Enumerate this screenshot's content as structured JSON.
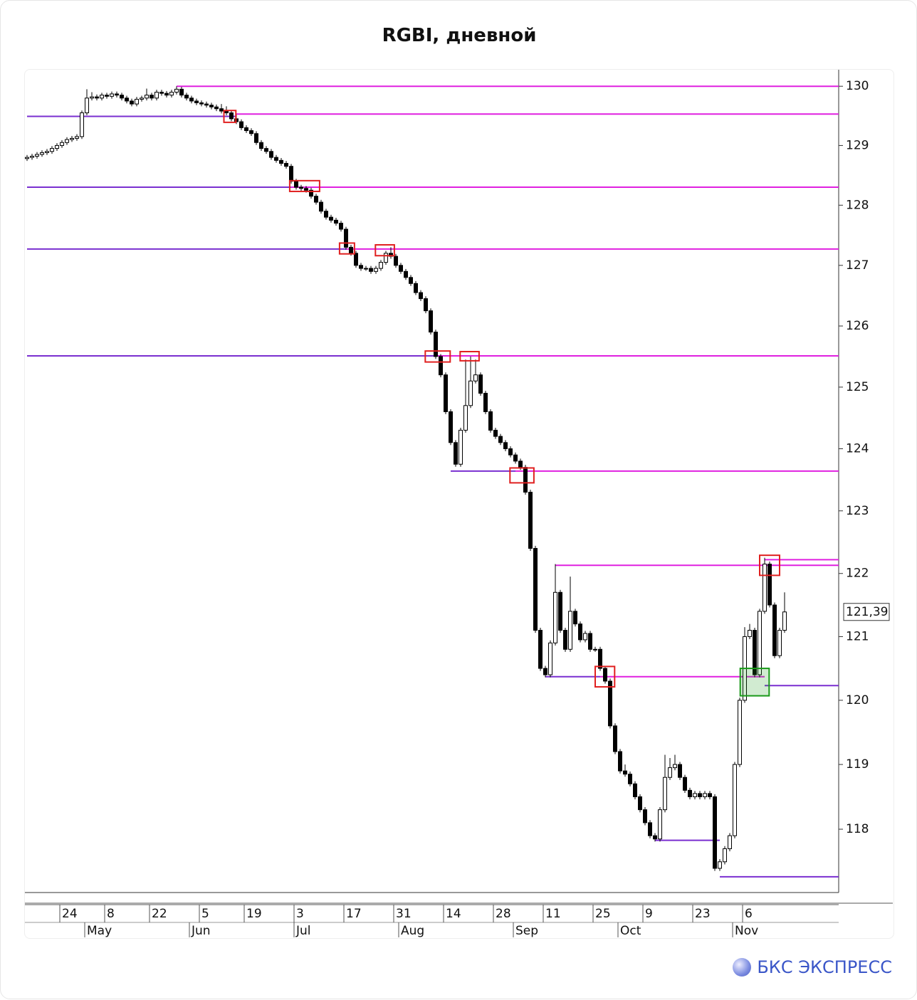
{
  "chart_data": {
    "type": "candlestick",
    "title": "RGBI, дневной",
    "log": true,
    "ylim": [
      117.03,
      130.28
    ],
    "yticks": [
      118,
      119,
      120,
      121,
      122,
      123,
      124,
      125,
      126,
      127,
      128,
      129,
      130
    ],
    "last_price": {
      "value": 121.39,
      "label": "121,39"
    },
    "xticks": [
      {
        "value": 7,
        "label": "24"
      },
      {
        "value": 16,
        "label": "8"
      },
      {
        "value": 25,
        "label": "22"
      },
      {
        "value": 35,
        "label": "5"
      },
      {
        "value": 44,
        "label": "19"
      },
      {
        "value": 54,
        "label": "3"
      },
      {
        "value": 64,
        "label": "17"
      },
      {
        "value": 74,
        "label": "31"
      },
      {
        "value": 84,
        "label": "14"
      },
      {
        "value": 94,
        "label": "28"
      },
      {
        "value": 104,
        "label": "11"
      },
      {
        "value": 114,
        "label": "25"
      },
      {
        "value": 124,
        "label": "9"
      },
      {
        "value": 134,
        "label": "23"
      },
      {
        "value": 144,
        "label": "6"
      }
    ],
    "month_ticks": [
      {
        "value": 12,
        "label": "May"
      },
      {
        "value": 33,
        "label": "Jun"
      },
      {
        "value": 54,
        "label": "Jul"
      },
      {
        "value": 75,
        "label": "Aug"
      },
      {
        "value": 98,
        "label": "Sep"
      },
      {
        "value": 119,
        "label": "Oct"
      },
      {
        "value": 142,
        "label": "Nov"
      }
    ],
    "ohlc": [
      [
        128.78,
        128.84,
        128.74,
        128.8
      ],
      [
        128.8,
        128.86,
        128.76,
        128.82
      ],
      [
        128.82,
        128.89,
        128.78,
        128.85
      ],
      [
        128.85,
        128.92,
        128.81,
        128.88
      ],
      [
        128.88,
        128.94,
        128.84,
        128.9
      ],
      [
        128.9,
        128.99,
        128.86,
        128.95
      ],
      [
        128.95,
        129.04,
        128.91,
        129.0
      ],
      [
        129.0,
        129.09,
        128.96,
        129.05
      ],
      [
        129.05,
        129.14,
        129.01,
        129.1
      ],
      [
        129.1,
        129.16,
        129.06,
        129.12
      ],
      [
        129.12,
        129.19,
        129.08,
        129.15
      ],
      [
        129.15,
        129.59,
        129.11,
        129.55
      ],
      [
        129.55,
        129.95,
        129.51,
        129.8
      ],
      [
        129.8,
        129.9,
        129.76,
        129.82
      ],
      [
        129.82,
        129.86,
        129.76,
        129.8
      ],
      [
        129.8,
        129.89,
        129.76,
        129.85
      ],
      [
        129.85,
        129.89,
        129.79,
        129.83
      ],
      [
        129.83,
        129.91,
        129.79,
        129.87
      ],
      [
        129.87,
        129.91,
        129.81,
        129.85
      ],
      [
        129.85,
        129.89,
        129.76,
        129.8
      ],
      [
        129.8,
        129.84,
        129.71,
        129.75
      ],
      [
        129.75,
        129.79,
        129.66,
        129.7
      ],
      [
        129.7,
        129.82,
        129.66,
        129.78
      ],
      [
        129.78,
        129.84,
        129.74,
        129.8
      ],
      [
        129.8,
        129.96,
        129.76,
        129.85
      ],
      [
        129.85,
        129.89,
        129.76,
        129.8
      ],
      [
        129.8,
        129.94,
        129.76,
        129.9
      ],
      [
        129.9,
        129.94,
        129.84,
        129.88
      ],
      [
        129.88,
        129.92,
        129.81,
        129.85
      ],
      [
        129.85,
        129.94,
        129.81,
        129.9
      ],
      [
        129.9,
        130.0,
        129.86,
        129.95
      ],
      [
        129.95,
        129.99,
        129.81,
        129.85
      ],
      [
        129.85,
        129.89,
        129.76,
        129.8
      ],
      [
        129.8,
        129.84,
        129.71,
        129.75
      ],
      [
        129.75,
        129.79,
        129.68,
        129.72
      ],
      [
        129.72,
        129.76,
        129.66,
        129.7
      ],
      [
        129.7,
        129.74,
        129.64,
        129.68
      ],
      [
        129.68,
        129.72,
        129.61,
        129.65
      ],
      [
        129.65,
        129.69,
        129.58,
        129.62
      ],
      [
        129.62,
        129.7,
        129.54,
        129.58
      ],
      [
        129.58,
        129.66,
        129.51,
        129.55
      ],
      [
        129.55,
        129.59,
        129.41,
        129.45
      ],
      [
        129.45,
        129.52,
        129.36,
        129.4
      ],
      [
        129.4,
        129.44,
        129.26,
        129.3
      ],
      [
        129.3,
        129.34,
        129.21,
        129.25
      ],
      [
        129.25,
        129.29,
        129.16,
        129.2
      ],
      [
        129.2,
        129.24,
        129.01,
        129.05
      ],
      [
        129.05,
        129.09,
        128.91,
        128.95
      ],
      [
        128.95,
        128.99,
        128.86,
        128.9
      ],
      [
        128.9,
        128.94,
        128.76,
        128.8
      ],
      [
        128.8,
        128.84,
        128.71,
        128.75
      ],
      [
        128.75,
        128.79,
        128.66,
        128.7
      ],
      [
        128.7,
        128.74,
        128.61,
        128.65
      ],
      [
        128.65,
        128.69,
        128.36,
        128.4
      ],
      [
        128.4,
        128.44,
        128.26,
        128.3
      ],
      [
        128.3,
        128.34,
        128.24,
        128.28
      ],
      [
        128.28,
        128.32,
        128.21,
        128.25
      ],
      [
        128.25,
        128.29,
        128.11,
        128.15
      ],
      [
        128.15,
        128.19,
        128.01,
        128.05
      ],
      [
        128.05,
        128.09,
        127.86,
        127.9
      ],
      [
        127.9,
        127.94,
        127.76,
        127.8
      ],
      [
        127.8,
        127.84,
        127.71,
        127.75
      ],
      [
        127.75,
        127.79,
        127.66,
        127.7
      ],
      [
        127.7,
        127.74,
        127.56,
        127.6
      ],
      [
        127.6,
        127.64,
        127.26,
        127.3
      ],
      [
        127.3,
        127.34,
        127.16,
        127.2
      ],
      [
        127.2,
        127.24,
        126.96,
        127.0
      ],
      [
        127.0,
        127.04,
        126.91,
        126.95
      ],
      [
        126.95,
        126.99,
        126.91,
        126.95
      ],
      [
        126.95,
        126.99,
        126.86,
        126.9
      ],
      [
        126.9,
        126.99,
        126.86,
        126.95
      ],
      [
        126.95,
        127.09,
        126.91,
        127.05
      ],
      [
        127.05,
        127.24,
        127.01,
        127.2
      ],
      [
        127.2,
        127.3,
        127.11,
        127.15
      ],
      [
        127.15,
        127.19,
        126.96,
        127.0
      ],
      [
        127.0,
        127.04,
        126.86,
        126.9
      ],
      [
        126.9,
        126.94,
        126.76,
        126.8
      ],
      [
        126.8,
        126.84,
        126.66,
        126.7
      ],
      [
        126.7,
        126.74,
        126.51,
        126.55
      ],
      [
        126.55,
        126.59,
        126.41,
        126.45
      ],
      [
        126.45,
        126.49,
        126.21,
        126.25
      ],
      [
        126.25,
        126.29,
        125.86,
        125.9
      ],
      [
        125.9,
        125.94,
        125.46,
        125.5
      ],
      [
        125.5,
        125.54,
        125.16,
        125.2
      ],
      [
        125.2,
        125.24,
        124.56,
        124.6
      ],
      [
        124.6,
        124.64,
        124.06,
        124.1
      ],
      [
        124.1,
        124.14,
        123.71,
        123.75
      ],
      [
        123.75,
        124.34,
        123.71,
        124.3
      ],
      [
        124.3,
        125.45,
        124.26,
        124.7
      ],
      [
        124.7,
        125.5,
        124.66,
        125.1
      ],
      [
        125.1,
        125.45,
        125.06,
        125.2
      ],
      [
        125.2,
        125.24,
        124.86,
        124.9
      ],
      [
        124.9,
        124.94,
        124.56,
        124.6
      ],
      [
        124.6,
        124.64,
        124.26,
        124.3
      ],
      [
        124.3,
        124.34,
        124.16,
        124.2
      ],
      [
        124.2,
        124.24,
        124.06,
        124.1
      ],
      [
        124.1,
        124.14,
        123.96,
        124.0
      ],
      [
        124.0,
        124.04,
        123.86,
        123.9
      ],
      [
        123.9,
        123.94,
        123.76,
        123.8
      ],
      [
        123.8,
        123.84,
        123.66,
        123.7
      ],
      [
        123.7,
        123.74,
        123.26,
        123.3
      ],
      [
        123.3,
        123.34,
        122.36,
        122.4
      ],
      [
        122.4,
        122.44,
        121.06,
        121.1
      ],
      [
        121.1,
        121.14,
        120.46,
        120.5
      ],
      [
        120.5,
        120.54,
        120.36,
        120.4
      ],
      [
        120.4,
        120.94,
        120.36,
        120.9
      ],
      [
        120.9,
        122.15,
        120.86,
        121.7
      ],
      [
        121.7,
        121.74,
        121.06,
        121.1
      ],
      [
        121.1,
        121.14,
        120.76,
        120.8
      ],
      [
        120.8,
        121.95,
        120.76,
        121.4
      ],
      [
        121.4,
        121.44,
        121.16,
        121.2
      ],
      [
        121.2,
        121.24,
        120.91,
        120.95
      ],
      [
        120.95,
        121.09,
        120.91,
        121.05
      ],
      [
        121.05,
        121.09,
        120.76,
        120.8
      ],
      [
        120.8,
        120.84,
        120.76,
        120.8
      ],
      [
        120.8,
        120.84,
        120.46,
        120.5
      ],
      [
        120.5,
        120.54,
        120.26,
        120.3
      ],
      [
        120.3,
        120.34,
        119.56,
        119.6
      ],
      [
        119.6,
        119.64,
        119.16,
        119.2
      ],
      [
        119.2,
        119.24,
        118.86,
        118.9
      ],
      [
        118.9,
        119.0,
        118.81,
        118.85
      ],
      [
        118.85,
        118.89,
        118.66,
        118.7
      ],
      [
        118.7,
        118.74,
        118.46,
        118.5
      ],
      [
        118.5,
        118.54,
        118.26,
        118.3
      ],
      [
        118.3,
        118.34,
        118.06,
        118.1
      ],
      [
        118.1,
        118.14,
        117.86,
        117.9
      ],
      [
        117.9,
        117.94,
        117.81,
        117.85
      ],
      [
        117.85,
        118.34,
        117.81,
        118.3
      ],
      [
        118.3,
        119.15,
        118.26,
        118.8
      ],
      [
        118.8,
        119.1,
        118.76,
        118.95
      ],
      [
        118.95,
        119.15,
        118.91,
        119.0
      ],
      [
        119.0,
        119.04,
        118.76,
        118.8
      ],
      [
        118.8,
        118.84,
        118.56,
        118.6
      ],
      [
        118.6,
        118.64,
        118.46,
        118.5
      ],
      [
        118.5,
        118.59,
        118.46,
        118.55
      ],
      [
        118.55,
        118.59,
        118.46,
        118.5
      ],
      [
        118.5,
        118.59,
        118.46,
        118.55
      ],
      [
        118.55,
        118.59,
        118.46,
        118.5
      ],
      [
        118.5,
        118.54,
        117.36,
        117.4
      ],
      [
        117.4,
        117.54,
        117.36,
        117.5
      ],
      [
        117.5,
        117.74,
        117.46,
        117.7
      ],
      [
        117.7,
        117.94,
        117.66,
        117.9
      ],
      [
        117.9,
        119.04,
        117.86,
        119.0
      ],
      [
        119.0,
        120.04,
        118.96,
        120.0
      ],
      [
        120.0,
        121.15,
        119.96,
        121.0
      ],
      [
        121.0,
        121.2,
        120.96,
        121.1
      ],
      [
        121.1,
        121.14,
        120.36,
        120.4
      ],
      [
        120.4,
        121.44,
        120.36,
        121.4
      ],
      [
        121.4,
        122.25,
        121.36,
        122.15
      ],
      [
        122.15,
        122.19,
        121.46,
        121.5
      ],
      [
        121.5,
        121.54,
        120.66,
        120.7
      ],
      [
        120.7,
        121.14,
        120.66,
        121.1
      ],
      [
        121.1,
        121.7,
        121.06,
        121.39
      ]
    ],
    "levels": [
      {
        "value": 130.0,
        "from": 30,
        "color": "#e020e0"
      },
      {
        "value": 129.53,
        "from": 42,
        "color": "#e020e0"
      },
      {
        "value": 129.49,
        "from": 0,
        "to": 42,
        "color": "#7a2fd0"
      },
      {
        "value": 128.3,
        "from": 0,
        "to": 53,
        "color": "#7a2fd0"
      },
      {
        "value": 128.3,
        "from": 53,
        "color": "#e020e0"
      },
      {
        "value": 127.27,
        "from": 0,
        "to": 64,
        "color": "#7a2fd0"
      },
      {
        "value": 127.27,
        "from": 64,
        "color": "#e020e0"
      },
      {
        "value": 125.51,
        "from": 0,
        "to": 82,
        "color": "#7a2fd0"
      },
      {
        "value": 125.51,
        "from": 82,
        "color": "#e020e0"
      },
      {
        "value": 123.64,
        "from": 85,
        "to": 98,
        "color": "#7a2fd0"
      },
      {
        "value": 123.64,
        "from": 98,
        "color": "#e020e0"
      },
      {
        "value": 122.22,
        "from": 148,
        "color": "#e020e0"
      },
      {
        "value": 122.13,
        "from": 106,
        "color": "#e020e0"
      },
      {
        "value": 120.37,
        "from": 104,
        "to": 115,
        "color": "#7a2fd0"
      },
      {
        "value": 120.37,
        "from": 115,
        "to": 148,
        "color": "#e020e0"
      },
      {
        "value": 120.23,
        "from": 148,
        "color": "#7a2fd0"
      },
      {
        "value": 117.83,
        "from": 126,
        "to": 139,
        "color": "#7a2fd0"
      },
      {
        "value": 117.27,
        "from": 139,
        "color": "#7a2fd0"
      }
    ],
    "boxes": [
      {
        "x0": 39.5,
        "x1": 41.9,
        "y0": 129.59,
        "y1": 129.39,
        "color": "#e02020"
      },
      {
        "x0": 52.7,
        "x1": 58.7,
        "y0": 128.41,
        "y1": 128.23,
        "color": "#e02020"
      },
      {
        "x0": 62.7,
        "x1": 65.7,
        "y0": 127.37,
        "y1": 127.19,
        "color": "#e02020"
      },
      {
        "x0": 69.9,
        "x1": 73.7,
        "y0": 127.34,
        "y1": 127.16,
        "color": "#e02020"
      },
      {
        "x0": 79.9,
        "x1": 84.9,
        "y0": 125.59,
        "y1": 125.41,
        "color": "#e02020"
      },
      {
        "x0": 86.9,
        "x1": 90.7,
        "y0": 125.58,
        "y1": 125.43,
        "color": "#e02020"
      },
      {
        "x0": 96.9,
        "x1": 101.7,
        "y0": 123.69,
        "y1": 123.45,
        "color": "#e02020"
      },
      {
        "x0": 114,
        "x1": 117.9,
        "y0": 120.53,
        "y1": 120.21,
        "color": "#e02020"
      },
      {
        "x0": 147,
        "x1": 151,
        "y0": 122.29,
        "y1": 121.97,
        "color": "#e02020"
      },
      {
        "x0": 143.1,
        "x1": 148.9,
        "y0": 120.5,
        "y1": 120.07,
        "color": "#1a9a1a"
      }
    ]
  },
  "footer": {
    "brand": "БКС ЭКСПРЕСС"
  }
}
